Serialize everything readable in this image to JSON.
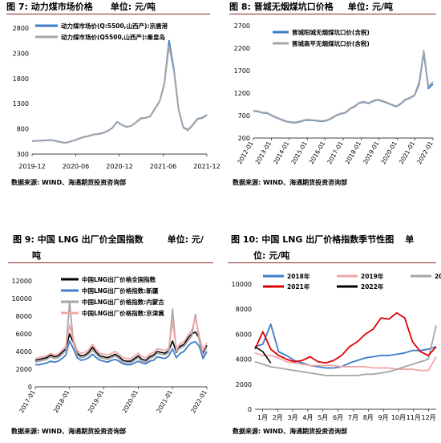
{
  "panels": [
    {
      "title": "图 7: 动力煤市场价格",
      "unit": "单位: 元/吨",
      "source": "数据来源: WIND、海通期货投资咨询部"
    },
    {
      "title": "图 8: 晋城无烟煤坑口价格",
      "unit": "单位: 元/吨",
      "source": "数据来源: WIND、海通期货投资咨询部"
    },
    {
      "title": "图 9: 中国 LNG 出厂价全国指数",
      "unit": "单位: 元/",
      "unit_cont": "吨",
      "source": "数据来源: WIND、海通期货投资咨询部"
    },
    {
      "title": "图 10: 中国 LNG 出厂价格指数季节性图",
      "unit": "单",
      "unit_cont": "位: 元/吨",
      "source": "数据来源: WIND、海通期货投资咨询部"
    }
  ],
  "chart_data": [
    {
      "type": "line",
      "title": "",
      "x_ticks": [
        "2019-12",
        "2020-06",
        "2020-12",
        "2021-06",
        "2021-12"
      ],
      "y_ticks": [
        300,
        800,
        1300,
        1800,
        2300,
        2800
      ],
      "ylim": [
        300,
        2800
      ],
      "series": [
        {
          "name": "动力煤市场价(Q:5500,山西产):京唐港",
          "color": "#3d7cc9",
          "values": [
            560,
            565,
            570,
            575,
            580,
            560,
            540,
            525,
            545,
            575,
            610,
            640,
            660,
            690,
            700,
            720,
            760,
            820,
            940,
            880,
            840,
            860,
            930,
            1010,
            1020,
            1050,
            1200,
            1350,
            1700,
            2550,
            2000,
            1200,
            830,
            780,
            880,
            1000,
            1020,
            1080
          ]
        },
        {
          "name": "动力煤市场价(Q5500,山西产):秦皇岛",
          "color": "#a6a6a6",
          "values": [
            555,
            560,
            565,
            570,
            575,
            555,
            535,
            520,
            540,
            570,
            605,
            635,
            655,
            685,
            695,
            715,
            755,
            815,
            935,
            875,
            835,
            855,
            925,
            1000,
            1015,
            1045,
            1190,
            1340,
            1680,
            2450,
            1950,
            1180,
            820,
            770,
            870,
            990,
            1010,
            1070
          ]
        }
      ]
    },
    {
      "type": "line",
      "title": "",
      "x_ticks": [
        "2012-01",
        "2013-01",
        "2014-01",
        "2015-01",
        "2016-01",
        "2017-01",
        "2018-01",
        "2019-01",
        "2020-01",
        "2021-01",
        "2022-01"
      ],
      "y_ticks": [
        200,
        700,
        1200,
        1700,
        2200,
        2700
      ],
      "ylim": [
        200,
        2700
      ],
      "series": [
        {
          "name": "晋城阳城无烟煤坑口价(含税)",
          "color": "#3d7cc9",
          "values": [
            800,
            790,
            760,
            750,
            700,
            650,
            610,
            570,
            550,
            540,
            560,
            590,
            600,
            590,
            580,
            570,
            590,
            640,
            700,
            740,
            760,
            850,
            900,
            980,
            1000,
            970,
            1020,
            1050,
            1020,
            980,
            940,
            900,
            960,
            1050,
            1090,
            1150,
            1400,
            2100,
            1300,
            1400
          ]
        },
        {
          "name": "晋城高平无烟煤坑口价(含税)",
          "color": "#a6a6a6",
          "values": [
            810,
            800,
            770,
            760,
            710,
            660,
            620,
            580,
            560,
            550,
            570,
            600,
            610,
            600,
            590,
            580,
            600,
            650,
            710,
            750,
            770,
            860,
            910,
            990,
            1010,
            980,
            1030,
            1060,
            1030,
            990,
            950,
            910,
            970,
            1060,
            1100,
            1160,
            1450,
            2150,
            1350,
            1450
          ]
        }
      ]
    },
    {
      "type": "line",
      "title": "",
      "x_ticks": [
        "2017-01",
        "2018-01",
        "2019-01",
        "2020-01",
        "2021-01",
        "2022-01"
      ],
      "y_ticks": [
        0,
        2000,
        4000,
        6000,
        8000,
        10000,
        12000
      ],
      "ylim": [
        0,
        12000
      ],
      "series": [
        {
          "name": "中国LNG出厂价格全国指数",
          "color": "#000000",
          "values": [
            3000,
            3100,
            3200,
            3300,
            3600,
            3400,
            3500,
            3900,
            4300,
            6000,
            5000,
            3800,
            3500,
            3600,
            3900,
            4500,
            3900,
            3500,
            3400,
            3300,
            3500,
            3700,
            3400,
            3000,
            2900,
            2900,
            3200,
            3500,
            3100,
            3000,
            3400,
            3600,
            4000,
            3900,
            3800,
            4100,
            5200,
            3900,
            4600,
            4800,
            5500,
            6000,
            6200,
            5500,
            3800,
            4700
          ]
        },
        {
          "name": "中国LNG出厂价格指数:新疆",
          "color": "#3d7cc9",
          "values": [
            2500,
            2500,
            2600,
            2700,
            2900,
            2800,
            2900,
            3200,
            3600,
            5200,
            4300,
            3300,
            3000,
            3100,
            3300,
            3700,
            3300,
            3000,
            2900,
            2800,
            3000,
            3100,
            2900,
            2600,
            2500,
            2500,
            2700,
            2900,
            2700,
            2600,
            2900,
            3000,
            3400,
            3300,
            3200,
            3500,
            4300,
            3300,
            3800,
            4000,
            4600,
            5000,
            5100,
            4600,
            3200,
            4000
          ]
        },
        {
          "name": "中国LNG出厂价格指数:内蒙古",
          "color": "#a6a6a6",
          "values": [
            2800,
            2900,
            3000,
            3100,
            3400,
            3200,
            3300,
            3700,
            4100,
            9600,
            5000,
            3600,
            3300,
            3400,
            3700,
            4200,
            3700,
            3300,
            3200,
            3100,
            3300,
            3500,
            3200,
            2800,
            2700,
            2700,
            3000,
            3300,
            2900,
            2800,
            3200,
            3400,
            3800,
            3700,
            3600,
            3900,
            8800,
            4000,
            4400,
            4600,
            5200,
            5700,
            8200,
            5200,
            3600,
            4500
          ]
        },
        {
          "name": "中国LNG出厂价格指数:京津冀",
          "color": "#f2a7a7",
          "values": [
            3200,
            3300,
            3400,
            3500,
            3800,
            3600,
            3700,
            4100,
            4600,
            7000,
            5400,
            4100,
            3800,
            3900,
            4200,
            4800,
            4200,
            3800,
            3700,
            3600,
            3800,
            4000,
            3700,
            3300,
            3200,
            3200,
            3500,
            3800,
            3400,
            3300,
            3700,
            3900,
            4300,
            4200,
            4100,
            4400,
            7400,
            4300,
            4900,
            5100,
            5800,
            6400,
            7800,
            5800,
            4100,
            5000
          ]
        }
      ]
    },
    {
      "type": "line",
      "title": "",
      "x_ticks": [
        "1月",
        "2月",
        "3月",
        "4月",
        "5月",
        "6月",
        "7月",
        "8月",
        "9月",
        "10月",
        "11月",
        "12月"
      ],
      "y_ticks": [
        0,
        2000,
        4000,
        6000,
        8000,
        10000
      ],
      "ylim": [
        0,
        10000
      ],
      "series": [
        {
          "name": "2018年",
          "color": "#3d7cc9",
          "values": [
            5000,
            5200,
            6800,
            4600,
            4300,
            3900,
            3700,
            3500,
            3400,
            3300,
            3300,
            3400,
            3700,
            3900,
            4100,
            4200,
            4300,
            4300,
            4400,
            4500,
            4700,
            4700,
            4800,
            5000
          ]
        },
        {
          "name": "2019年",
          "color": "#f2a7a7",
          "values": [
            4500,
            4300,
            4300,
            4100,
            3800,
            3700,
            3600,
            3500,
            3500,
            3500,
            3500,
            3400,
            3400,
            3400,
            3400,
            3300,
            3300,
            3300,
            3200,
            3200,
            3200,
            3100,
            3100,
            4200
          ]
        },
        {
          "name": "2020年",
          "color": "#a6a6a6",
          "values": [
            3800,
            3600,
            3400,
            3300,
            3200,
            3100,
            3000,
            2900,
            2800,
            2700,
            2700,
            2700,
            2700,
            2700,
            2800,
            2800,
            2900,
            3000,
            3200,
            3400,
            3600,
            3800,
            4000,
            6700
          ]
        },
        {
          "name": "2021年",
          "color": "#e00000",
          "values": [
            4800,
            6200,
            4800,
            4300,
            4000,
            3800,
            3900,
            4200,
            3800,
            3700,
            3900,
            4300,
            5000,
            5400,
            6000,
            6400,
            7300,
            7200,
            7700,
            7300,
            5400,
            4600,
            4300,
            5000
          ]
        },
        {
          "name": "2022年",
          "color": "#000000",
          "values": [
            5000,
            4600,
            3700
          ]
        }
      ]
    }
  ]
}
